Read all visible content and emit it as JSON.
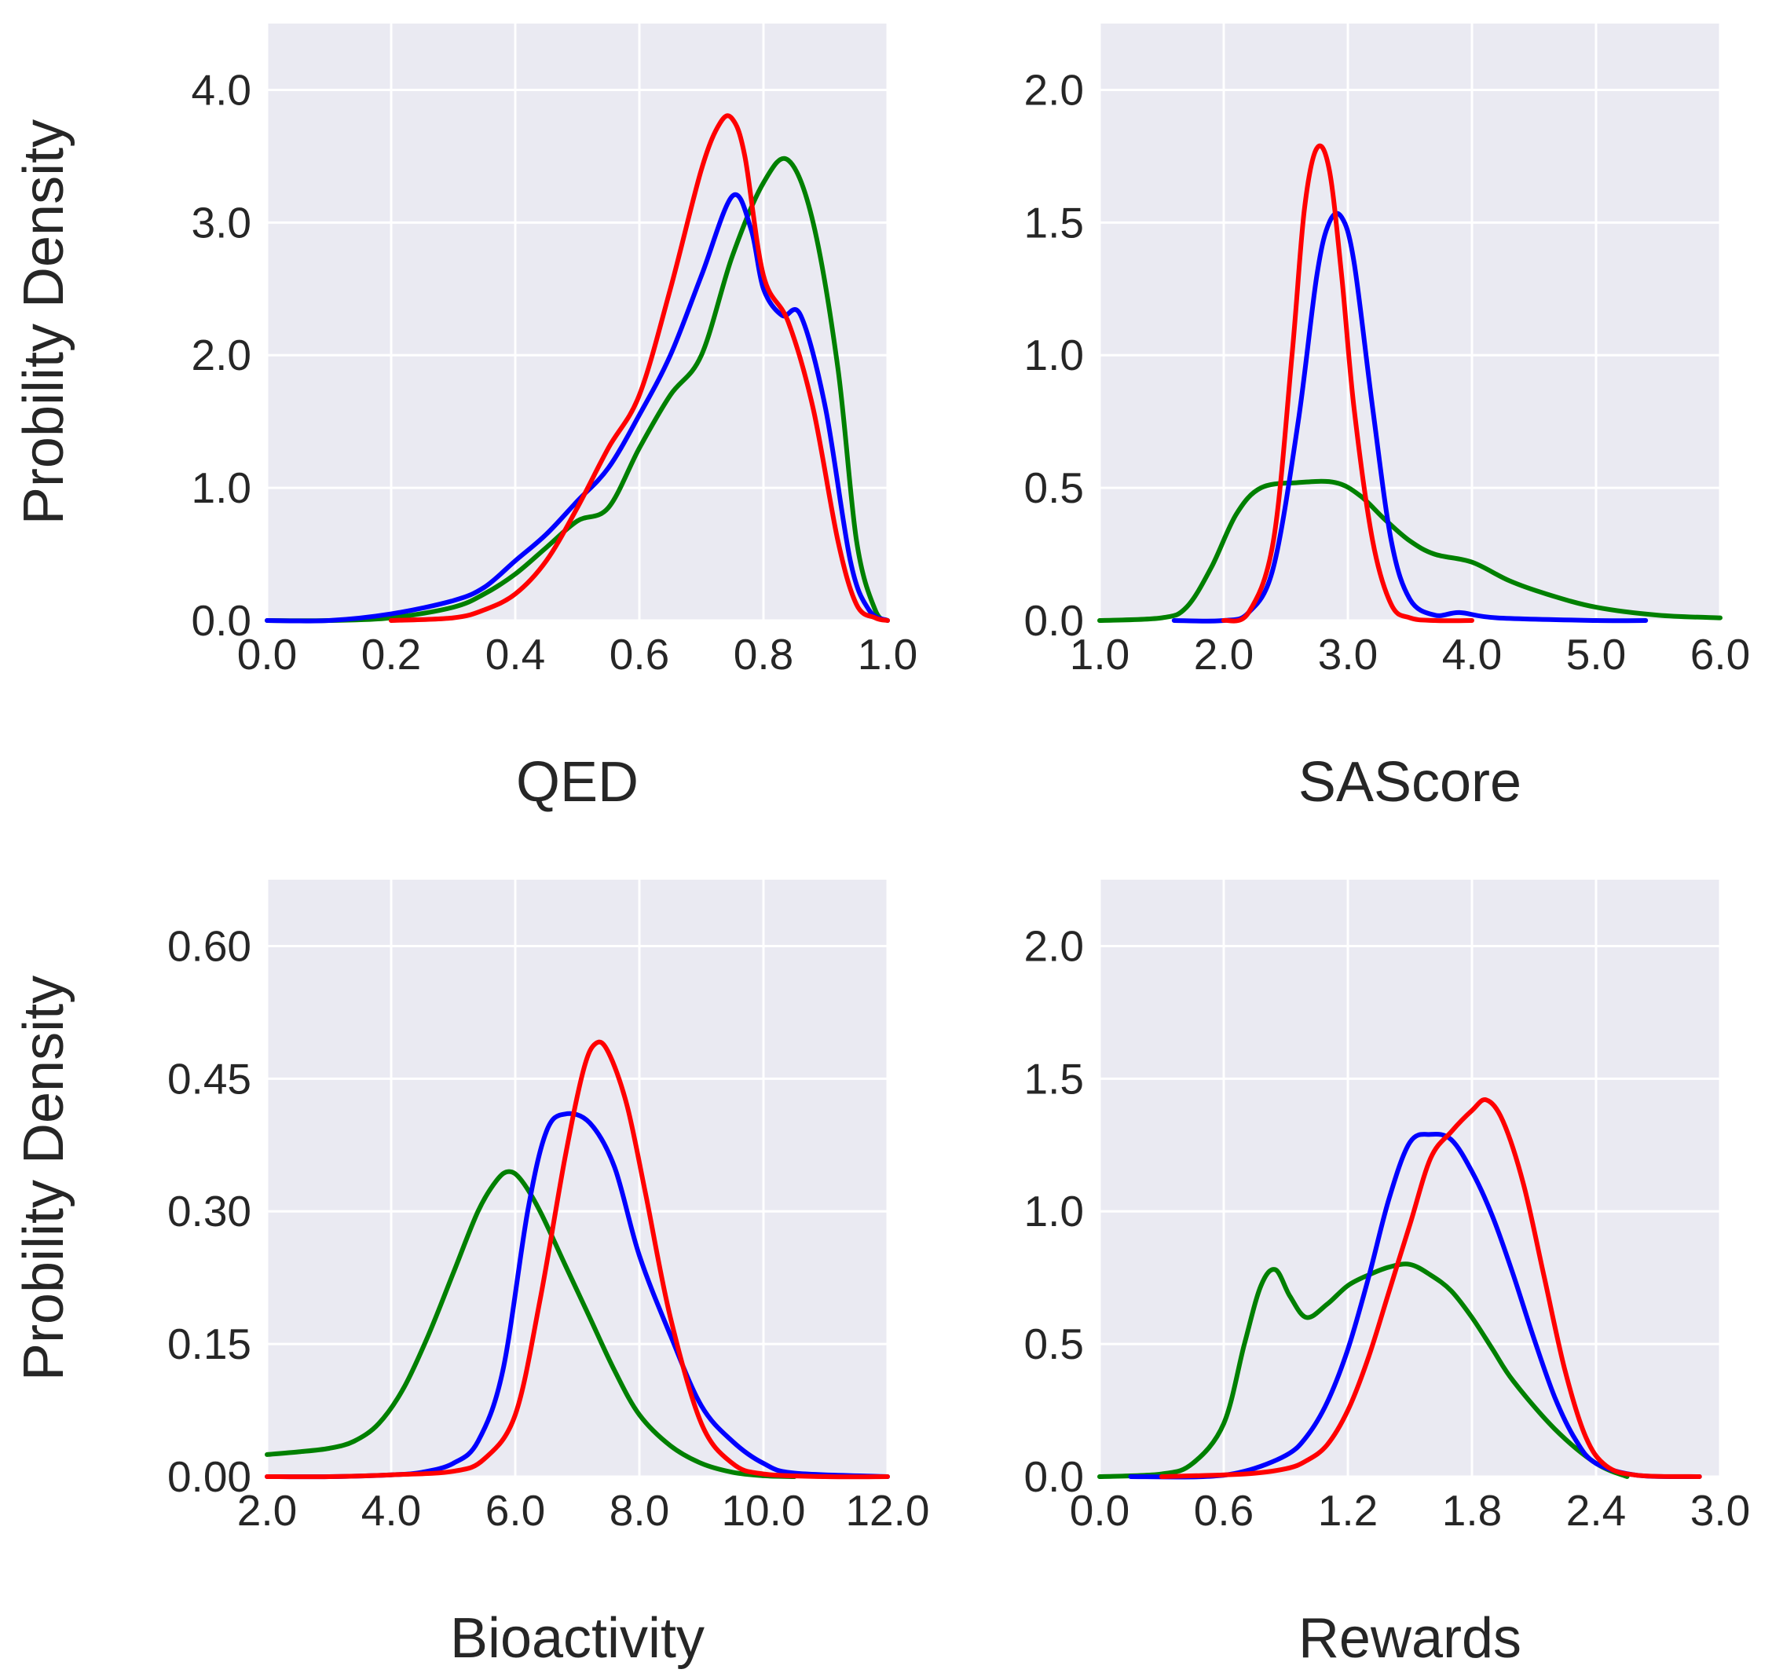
{
  "colors": {
    "panel_background": "#eaeaf2",
    "grid": "#ffffff",
    "red": "#ff0000",
    "blue": "#0000ff",
    "green": "#008000",
    "text": "#262626"
  },
  "chart_data": [
    {
      "type": "line",
      "title": "",
      "xlabel": "QED",
      "ylabel": "Probility Density",
      "xlim": [
        0.0,
        1.0
      ],
      "ylim": [
        0.0,
        4.5
      ],
      "xticks": [
        0.0,
        0.2,
        0.4,
        0.6,
        0.8,
        1.0
      ],
      "xtick_labels": [
        "0.0",
        "0.2",
        "0.4",
        "0.6",
        "0.8",
        "1.0"
      ],
      "yticks": [
        0.0,
        1.0,
        2.0,
        3.0,
        4.0
      ],
      "ytick_labels": [
        "0.0",
        "1.0",
        "2.0",
        "3.0",
        "4.0"
      ],
      "grid": true,
      "series": [
        {
          "name": "green",
          "color": "#008000",
          "x": [
            0.0,
            0.1,
            0.2,
            0.3,
            0.35,
            0.4,
            0.45,
            0.5,
            0.55,
            0.6,
            0.65,
            0.7,
            0.75,
            0.8,
            0.84,
            0.88,
            0.92,
            0.95,
            0.98,
            1.0
          ],
          "y": [
            0.0,
            0.0,
            0.02,
            0.1,
            0.2,
            0.35,
            0.55,
            0.75,
            0.85,
            1.3,
            1.7,
            2.0,
            2.75,
            3.3,
            3.47,
            3.0,
            1.9,
            0.6,
            0.08,
            0.0
          ]
        },
        {
          "name": "blue",
          "color": "#0000ff",
          "x": [
            0.0,
            0.1,
            0.2,
            0.3,
            0.35,
            0.4,
            0.45,
            0.5,
            0.55,
            0.6,
            0.65,
            0.7,
            0.75,
            0.78,
            0.8,
            0.83,
            0.86,
            0.9,
            0.94,
            0.97,
            1.0
          ],
          "y": [
            0.0,
            0.0,
            0.05,
            0.15,
            0.25,
            0.45,
            0.65,
            0.9,
            1.15,
            1.55,
            2.0,
            2.6,
            3.2,
            2.95,
            2.5,
            2.3,
            2.3,
            1.6,
            0.45,
            0.08,
            0.0
          ]
        },
        {
          "name": "red",
          "color": "#ff0000",
          "x": [
            0.2,
            0.3,
            0.35,
            0.4,
            0.45,
            0.5,
            0.55,
            0.6,
            0.65,
            0.7,
            0.73,
            0.75,
            0.77,
            0.8,
            0.84,
            0.88,
            0.92,
            0.95,
            0.98,
            1.0
          ],
          "y": [
            0.0,
            0.02,
            0.08,
            0.2,
            0.45,
            0.85,
            1.3,
            1.7,
            2.5,
            3.4,
            3.75,
            3.78,
            3.5,
            2.6,
            2.25,
            1.6,
            0.6,
            0.12,
            0.02,
            0.0
          ]
        }
      ]
    },
    {
      "type": "line",
      "title": "",
      "xlabel": "SAScore",
      "ylabel": "",
      "xlim": [
        1.0,
        6.0
      ],
      "ylim": [
        0.0,
        2.25
      ],
      "xticks": [
        1.0,
        2.0,
        3.0,
        4.0,
        5.0,
        6.0
      ],
      "xtick_labels": [
        "1.0",
        "2.0",
        "3.0",
        "4.0",
        "5.0",
        "6.0"
      ],
      "yticks": [
        0.0,
        0.5,
        1.0,
        1.5,
        2.0
      ],
      "ytick_labels": [
        "0.0",
        "0.5",
        "1.0",
        "1.5",
        "2.0"
      ],
      "grid": true,
      "series": [
        {
          "name": "green",
          "color": "#008000",
          "x": [
            1.0,
            1.5,
            1.7,
            1.9,
            2.1,
            2.3,
            2.6,
            2.9,
            3.1,
            3.3,
            3.5,
            3.7,
            4.0,
            4.3,
            4.6,
            5.0,
            5.5,
            6.0
          ],
          "y": [
            0.0,
            0.01,
            0.05,
            0.2,
            0.4,
            0.5,
            0.52,
            0.52,
            0.47,
            0.38,
            0.3,
            0.25,
            0.22,
            0.15,
            0.1,
            0.05,
            0.02,
            0.01
          ]
        },
        {
          "name": "blue",
          "color": "#0000ff",
          "x": [
            1.6,
            2.0,
            2.2,
            2.4,
            2.6,
            2.75,
            2.85,
            2.95,
            3.05,
            3.2,
            3.35,
            3.5,
            3.7,
            3.9,
            4.2,
            5.0,
            5.4
          ],
          "y": [
            0.0,
            0.0,
            0.03,
            0.2,
            0.75,
            1.3,
            1.5,
            1.52,
            1.35,
            0.8,
            0.3,
            0.08,
            0.02,
            0.03,
            0.01,
            0.0,
            0.0
          ]
        },
        {
          "name": "red",
          "color": "#ff0000",
          "x": [
            2.0,
            2.2,
            2.4,
            2.55,
            2.65,
            2.75,
            2.85,
            2.95,
            3.05,
            3.2,
            3.35,
            3.5,
            3.7,
            4.0
          ],
          "y": [
            0.0,
            0.03,
            0.3,
            1.0,
            1.55,
            1.78,
            1.7,
            1.3,
            0.8,
            0.3,
            0.06,
            0.01,
            0.0,
            0.0
          ]
        }
      ]
    },
    {
      "type": "line",
      "title": "",
      "xlabel": "Bioactivity",
      "ylabel": "Probility Density",
      "xlim": [
        2.0,
        12.0
      ],
      "ylim": [
        0.0,
        0.675
      ],
      "xticks": [
        2.0,
        4.0,
        6.0,
        8.0,
        10.0,
        12.0
      ],
      "xtick_labels": [
        "2.0",
        "4.0",
        "6.0",
        "8.0",
        "10.0",
        "12.0"
      ],
      "yticks": [
        0.0,
        0.15,
        0.3,
        0.45,
        0.6
      ],
      "ytick_labels": [
        "0.00",
        "0.15",
        "0.30",
        "0.45",
        "0.60"
      ],
      "grid": true,
      "series": [
        {
          "name": "green",
          "color": "#008000",
          "x": [
            2.0,
            2.5,
            3.0,
            3.4,
            3.8,
            4.2,
            4.6,
            5.0,
            5.4,
            5.7,
            5.9,
            6.1,
            6.4,
            6.8,
            7.2,
            7.6,
            8.0,
            8.5,
            9.0,
            9.5,
            10.0,
            10.5
          ],
          "y": [
            0.025,
            0.028,
            0.032,
            0.04,
            0.06,
            0.1,
            0.16,
            0.23,
            0.3,
            0.335,
            0.345,
            0.335,
            0.3,
            0.24,
            0.18,
            0.12,
            0.07,
            0.035,
            0.015,
            0.005,
            0.001,
            0.0
          ]
        },
        {
          "name": "blue",
          "color": "#0000ff",
          "x": [
            2.0,
            3.0,
            4.0,
            4.5,
            5.0,
            5.4,
            5.8,
            6.2,
            6.5,
            6.8,
            7.2,
            7.6,
            8.0,
            8.5,
            9.0,
            9.5,
            10.0,
            10.5,
            12.0
          ],
          "y": [
            0.0,
            0.0,
            0.002,
            0.005,
            0.015,
            0.04,
            0.12,
            0.3,
            0.39,
            0.41,
            0.4,
            0.35,
            0.25,
            0.16,
            0.08,
            0.04,
            0.015,
            0.004,
            0.0
          ]
        },
        {
          "name": "red",
          "color": "#ff0000",
          "x": [
            2.0,
            3.0,
            4.0,
            5.0,
            5.5,
            6.0,
            6.4,
            6.8,
            7.1,
            7.3,
            7.5,
            7.8,
            8.1,
            8.5,
            9.0,
            9.5,
            10.0,
            11.0,
            12.0
          ],
          "y": [
            0.0,
            0.0,
            0.002,
            0.006,
            0.02,
            0.07,
            0.2,
            0.36,
            0.46,
            0.49,
            0.48,
            0.42,
            0.32,
            0.18,
            0.06,
            0.015,
            0.003,
            0.0,
            0.0
          ]
        }
      ]
    },
    {
      "type": "line",
      "title": "",
      "xlabel": "Rewards",
      "ylabel": "",
      "xlim": [
        0.0,
        3.0
      ],
      "ylim": [
        0.0,
        2.25
      ],
      "xticks": [
        0.0,
        0.6,
        1.2,
        1.8,
        2.4,
        3.0
      ],
      "xtick_labels": [
        "0.0",
        "0.6",
        "1.2",
        "1.8",
        "2.4",
        "3.0"
      ],
      "yticks": [
        0.0,
        0.5,
        1.0,
        1.5,
        2.0
      ],
      "ytick_labels": [
        "0.0",
        "0.5",
        "1.0",
        "1.5",
        "2.0"
      ],
      "grid": true,
      "series": [
        {
          "name": "green",
          "color": "#008000",
          "x": [
            0.0,
            0.3,
            0.45,
            0.6,
            0.7,
            0.78,
            0.85,
            0.92,
            1.0,
            1.1,
            1.2,
            1.3,
            1.4,
            1.5,
            1.6,
            1.7,
            1.8,
            1.9,
            2.0,
            2.2,
            2.4,
            2.55
          ],
          "y": [
            0.0,
            0.01,
            0.05,
            0.2,
            0.5,
            0.72,
            0.78,
            0.68,
            0.6,
            0.65,
            0.72,
            0.76,
            0.79,
            0.8,
            0.76,
            0.7,
            0.6,
            0.48,
            0.36,
            0.18,
            0.05,
            0.0
          ]
        },
        {
          "name": "blue",
          "color": "#0000ff",
          "x": [
            0.15,
            0.5,
            0.7,
            0.9,
            1.0,
            1.1,
            1.2,
            1.3,
            1.4,
            1.5,
            1.6,
            1.7,
            1.8,
            1.9,
            2.0,
            2.1,
            2.2,
            2.3,
            2.4,
            2.6,
            2.9
          ],
          "y": [
            0.0,
            0.0,
            0.02,
            0.08,
            0.15,
            0.28,
            0.48,
            0.75,
            1.05,
            1.26,
            1.29,
            1.27,
            1.15,
            0.98,
            0.76,
            0.52,
            0.3,
            0.14,
            0.05,
            0.005,
            0.0
          ]
        },
        {
          "name": "red",
          "color": "#ff0000",
          "x": [
            0.3,
            0.7,
            0.9,
            1.0,
            1.1,
            1.2,
            1.3,
            1.4,
            1.5,
            1.6,
            1.7,
            1.8,
            1.87,
            1.95,
            2.05,
            2.15,
            2.25,
            2.35,
            2.45,
            2.6,
            2.9
          ],
          "y": [
            0.0,
            0.01,
            0.03,
            0.06,
            0.12,
            0.25,
            0.45,
            0.7,
            0.95,
            1.2,
            1.3,
            1.38,
            1.42,
            1.34,
            1.1,
            0.75,
            0.4,
            0.15,
            0.04,
            0.005,
            0.0
          ]
        }
      ]
    }
  ]
}
